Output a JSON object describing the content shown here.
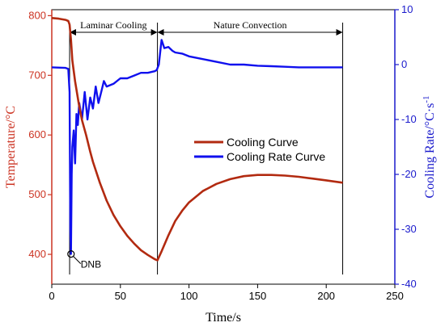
{
  "chart_data": {
    "type": "line",
    "xlabel": "Time/s",
    "ylabel_left": "Temperature/°C",
    "ylabel_right": "Cooling Rate/°C·s",
    "ylabel_right_exp": "-1",
    "xlim": [
      0,
      250
    ],
    "ylim_left": [
      350,
      810
    ],
    "ylim_right": [
      -40,
      10
    ],
    "x_ticks": [
      0,
      50,
      100,
      150,
      200,
      250
    ],
    "y_left_ticks": [
      400,
      500,
      600,
      700,
      800
    ],
    "y_right_ticks": [
      -40,
      -30,
      -20,
      -10,
      0,
      10
    ],
    "grid": false,
    "legend_position": "center-right",
    "colors": {
      "temperature": "#b22a10",
      "cooling_rate": "#1010ee",
      "axis_left": "#cc3322",
      "axis_right": "#1a1acc"
    },
    "regions": [
      {
        "label": "Laminar Cooling",
        "x_start": 13,
        "x_end": 77
      },
      {
        "label": "Nature Convection",
        "x_start": 77,
        "x_end": 212
      }
    ],
    "annotations": [
      {
        "label": "DNB",
        "x": 14,
        "y_rate": -34.5
      }
    ],
    "series": [
      {
        "name": "Cooling Curve",
        "axis": "left",
        "x": [
          0,
          5,
          10,
          12,
          13,
          14,
          15,
          17,
          20,
          22,
          25,
          28,
          30,
          35,
          40,
          45,
          50,
          55,
          60,
          65,
          70,
          75,
          77,
          80,
          85,
          90,
          95,
          100,
          110,
          120,
          130,
          140,
          150,
          160,
          170,
          180,
          190,
          200,
          212
        ],
        "values": [
          796,
          795,
          793,
          791,
          785,
          760,
          725,
          690,
          648,
          625,
          600,
          572,
          555,
          520,
          490,
          466,
          447,
          431,
          418,
          407,
          399,
          392,
          390,
          405,
          432,
          456,
          473,
          487,
          506,
          518,
          526,
          531,
          533,
          533,
          532,
          530,
          527,
          524,
          520
        ]
      },
      {
        "name": "Cooling Rate Curve",
        "axis": "right",
        "x": [
          0,
          10,
          12,
          13,
          13.5,
          14,
          14.5,
          15,
          16,
          17,
          18,
          19,
          20,
          22,
          24,
          26,
          28,
          30,
          32,
          34,
          36,
          38,
          40,
          45,
          50,
          55,
          60,
          65,
          70,
          75,
          76.5,
          78,
          80,
          82,
          85,
          88,
          90,
          95,
          100,
          110,
          120,
          130,
          140,
          150,
          160,
          170,
          180,
          190,
          200,
          212
        ],
        "values": [
          -0.5,
          -0.6,
          -0.8,
          -5,
          -30,
          -34.5,
          -20,
          -15,
          -12,
          -18,
          -9,
          -11,
          -7,
          -10,
          -5,
          -10,
          -6,
          -8,
          -4,
          -7,
          -5,
          -3,
          -4,
          -3.5,
          -2.5,
          -2.5,
          -2,
          -1.5,
          -1.5,
          -1.2,
          -1,
          0,
          4.5,
          3,
          3.2,
          2.5,
          2.2,
          2,
          1.5,
          1,
          0.5,
          0,
          0,
          -0.2,
          -0.3,
          -0.4,
          -0.5,
          -0.5,
          -0.5,
          -0.5
        ]
      }
    ]
  }
}
